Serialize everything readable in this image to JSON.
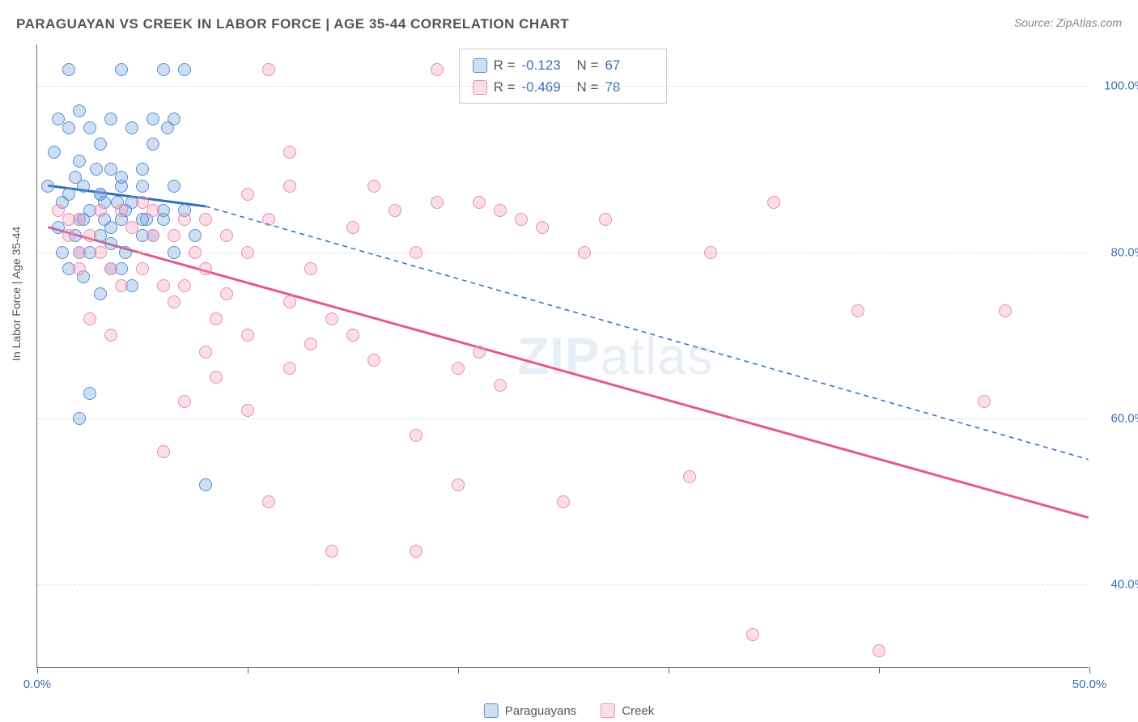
{
  "title": "PARAGUAYAN VS CREEK IN LABOR FORCE | AGE 35-44 CORRELATION CHART",
  "source": "Source: ZipAtlas.com",
  "y_axis_label": "In Labor Force | Age 35-44",
  "watermark": {
    "bold": "ZIP",
    "rest": "atlas"
  },
  "chart": {
    "type": "scatter",
    "xlim": [
      0,
      50
    ],
    "ylim": [
      30,
      105
    ],
    "x_ticks": [
      0,
      10,
      20,
      30,
      40,
      50
    ],
    "x_tick_labels": {
      "0": "0.0%",
      "50": "50.0%"
    },
    "y_ticks": [
      40,
      60,
      80,
      100
    ],
    "y_tick_labels": {
      "40": "40.0%",
      "60": "60.0%",
      "80": "80.0%",
      "100": "100.0%"
    },
    "grid_color": "#dddddd",
    "background_color": "#ffffff",
    "point_radius": 8,
    "series": [
      {
        "name": "Paraguayans",
        "fill": "rgba(115,163,222,0.35)",
        "stroke": "#5a8fd4",
        "r_value": "-0.123",
        "n_value": "67",
        "trend": {
          "x1": 0.5,
          "y1": 88,
          "x2": 8,
          "y2": 85.5,
          "solid_until_x": 8,
          "dashed_to_x": 50,
          "dashed_to_y": 55,
          "color": "#2e6cc0",
          "width": 3
        },
        "points": [
          [
            0.5,
            88
          ],
          [
            0.8,
            92
          ],
          [
            1,
            96
          ],
          [
            1,
            83
          ],
          [
            1.2,
            86
          ],
          [
            1.5,
            102
          ],
          [
            1.5,
            95
          ],
          [
            1.8,
            89
          ],
          [
            2,
            84
          ],
          [
            2,
            97
          ],
          [
            2,
            91
          ],
          [
            2.2,
            88
          ],
          [
            2.5,
            85
          ],
          [
            2.5,
            95
          ],
          [
            2.8,
            90
          ],
          [
            3,
            82
          ],
          [
            3,
            87
          ],
          [
            3,
            93
          ],
          [
            3.2,
            86
          ],
          [
            3.5,
            78
          ],
          [
            3.5,
            83
          ],
          [
            3.5,
            96
          ],
          [
            4,
            88
          ],
          [
            4,
            84
          ],
          [
            4,
            102
          ],
          [
            4.2,
            80
          ],
          [
            4.5,
            86
          ],
          [
            4.5,
            95
          ],
          [
            5,
            90
          ],
          [
            5,
            82
          ],
          [
            5,
            88
          ],
          [
            5.2,
            84
          ],
          [
            5.5,
            93
          ],
          [
            5.5,
            96
          ],
          [
            6,
            102
          ],
          [
            6,
            85
          ],
          [
            6.2,
            95
          ],
          [
            6.5,
            88
          ],
          [
            6.5,
            96
          ],
          [
            7,
            102
          ],
          [
            1.2,
            80
          ],
          [
            1.5,
            78
          ],
          [
            1.8,
            82
          ],
          [
            2,
            80
          ],
          [
            2.2,
            77
          ],
          [
            2.5,
            80
          ],
          [
            3,
            75
          ],
          [
            3.5,
            81
          ],
          [
            4,
            78
          ],
          [
            4.5,
            76
          ],
          [
            2,
            60
          ],
          [
            2.5,
            63
          ],
          [
            3,
            87
          ],
          [
            3.2,
            84
          ],
          [
            3.5,
            90
          ],
          [
            3.8,
            86
          ],
          [
            4,
            89
          ],
          [
            4.2,
            85
          ],
          [
            5,
            84
          ],
          [
            5.5,
            82
          ],
          [
            6,
            84
          ],
          [
            6.5,
            80
          ],
          [
            7,
            85
          ],
          [
            7.5,
            82
          ],
          [
            8,
            52
          ],
          [
            2.2,
            84
          ],
          [
            1.5,
            87
          ]
        ]
      },
      {
        "name": "Creek",
        "fill": "rgba(244,160,188,0.35)",
        "stroke": "#e88fad",
        "r_value": "-0.469",
        "n_value": "78",
        "trend": {
          "x1": 0.5,
          "y1": 83,
          "x2": 50,
          "y2": 48,
          "color": "#e35a8a",
          "width": 3
        },
        "points": [
          [
            1,
            85
          ],
          [
            1.5,
            82
          ],
          [
            2,
            78
          ],
          [
            2,
            84
          ],
          [
            2.5,
            82
          ],
          [
            2.5,
            72
          ],
          [
            3,
            80
          ],
          [
            3,
            85
          ],
          [
            3.5,
            78
          ],
          [
            3.5,
            70
          ],
          [
            4,
            85
          ],
          [
            4,
            76
          ],
          [
            4.5,
            83
          ],
          [
            5,
            86
          ],
          [
            5,
            78
          ],
          [
            5.5,
            82
          ],
          [
            5.5,
            85
          ],
          [
            6,
            76
          ],
          [
            6,
            56
          ],
          [
            6.5,
            82
          ],
          [
            6.5,
            74
          ],
          [
            7,
            84
          ],
          [
            7,
            76
          ],
          [
            7,
            62
          ],
          [
            7.5,
            80
          ],
          [
            8,
            84
          ],
          [
            8,
            68
          ],
          [
            8,
            78
          ],
          [
            8.5,
            72
          ],
          [
            8.5,
            65
          ],
          [
            9,
            82
          ],
          [
            9,
            75
          ],
          [
            10,
            87
          ],
          [
            10,
            61
          ],
          [
            10,
            70
          ],
          [
            10,
            80
          ],
          [
            11,
            84
          ],
          [
            11,
            50
          ],
          [
            12,
            92
          ],
          [
            12,
            66
          ],
          [
            12,
            74
          ],
          [
            12,
            88
          ],
          [
            13,
            69
          ],
          [
            13,
            78
          ],
          [
            14,
            44
          ],
          [
            14,
            72
          ],
          [
            15,
            70
          ],
          [
            15,
            83
          ],
          [
            16,
            88
          ],
          [
            16,
            67
          ],
          [
            17,
            85
          ],
          [
            18,
            80
          ],
          [
            18,
            44
          ],
          [
            18,
            58
          ],
          [
            19,
            102
          ],
          [
            19,
            86
          ],
          [
            20,
            66
          ],
          [
            20,
            52
          ],
          [
            21,
            68
          ],
          [
            21,
            86
          ],
          [
            22,
            64
          ],
          [
            22,
            85
          ],
          [
            23,
            84
          ],
          [
            24,
            83
          ],
          [
            25,
            50
          ],
          [
            26,
            80
          ],
          [
            27,
            84
          ],
          [
            31,
            53
          ],
          [
            32,
            80
          ],
          [
            34,
            34
          ],
          [
            35,
            86
          ],
          [
            39,
            73
          ],
          [
            40,
            32
          ],
          [
            45,
            62
          ],
          [
            46,
            73
          ],
          [
            11,
            102
          ],
          [
            1.5,
            84
          ],
          [
            2,
            80
          ]
        ]
      }
    ]
  },
  "legend_stats": {
    "r_label": "R =",
    "n_label": "N ="
  },
  "bottom_legend": {
    "items": [
      "Paraguayans",
      "Creek"
    ]
  }
}
